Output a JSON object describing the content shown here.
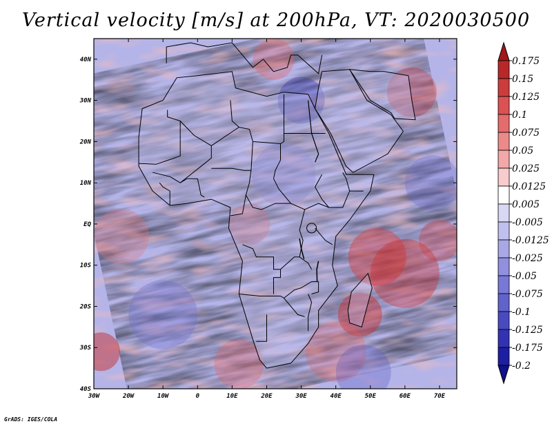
{
  "title": "Vertical velocity [m/s] at 200hPa, VT: 2020030500",
  "footer": "GrADS: IGES/COLA",
  "map": {
    "lon_range": [
      -30,
      75
    ],
    "lat_range": [
      -40,
      45
    ],
    "lon_ticks": [
      {
        "lon": -30,
        "label": "30W"
      },
      {
        "lon": -20,
        "label": "20W"
      },
      {
        "lon": -10,
        "label": "10W"
      },
      {
        "lon": 0,
        "label": "0"
      },
      {
        "lon": 10,
        "label": "10E"
      },
      {
        "lon": 20,
        "label": "20E"
      },
      {
        "lon": 30,
        "label": "30E"
      },
      {
        "lon": 40,
        "label": "40E"
      },
      {
        "lon": 50,
        "label": "50E"
      },
      {
        "lon": 60,
        "label": "60E"
      },
      {
        "lon": 70,
        "label": "70E"
      }
    ],
    "lat_ticks": [
      {
        "lat": 40,
        "label": "40N"
      },
      {
        "lat": 30,
        "label": "30N"
      },
      {
        "lat": 20,
        "label": "20N"
      },
      {
        "lat": 10,
        "label": "10N"
      },
      {
        "lat": 0,
        "label": "EQ"
      },
      {
        "lat": -10,
        "label": "10S"
      },
      {
        "lat": -20,
        "label": "20S"
      },
      {
        "lat": -30,
        "label": "30S"
      },
      {
        "lat": -40,
        "label": "40S"
      }
    ]
  },
  "colorbar": {
    "levels": [
      "0.175",
      "0.15",
      "0.125",
      "0.1",
      "0.075",
      "0.05",
      "0.025",
      "0.0125",
      "0.005",
      "-0.005",
      "-0.0125",
      "-0.025",
      "-0.05",
      "-0.075",
      "-0.1",
      "-0.125",
      "-0.175",
      "-0.2"
    ],
    "colors": [
      "#a01818",
      "#b82828",
      "#cc3c3c",
      "#dc5252",
      "#e46c6c",
      "#ec8a8a",
      "#f2a8a8",
      "#f8cccc",
      "#ffffff",
      "#d8d8f4",
      "#c0c0ee",
      "#a8a8e6",
      "#9090de",
      "#7878d6",
      "#6262cc",
      "#4a4ac0",
      "#3232b2",
      "#1e1ea2",
      "#10108a"
    ]
  },
  "colors": {
    "ocean_base": "#b4b4e8",
    "land_base": "#c4c0ea",
    "border": "#000000"
  }
}
